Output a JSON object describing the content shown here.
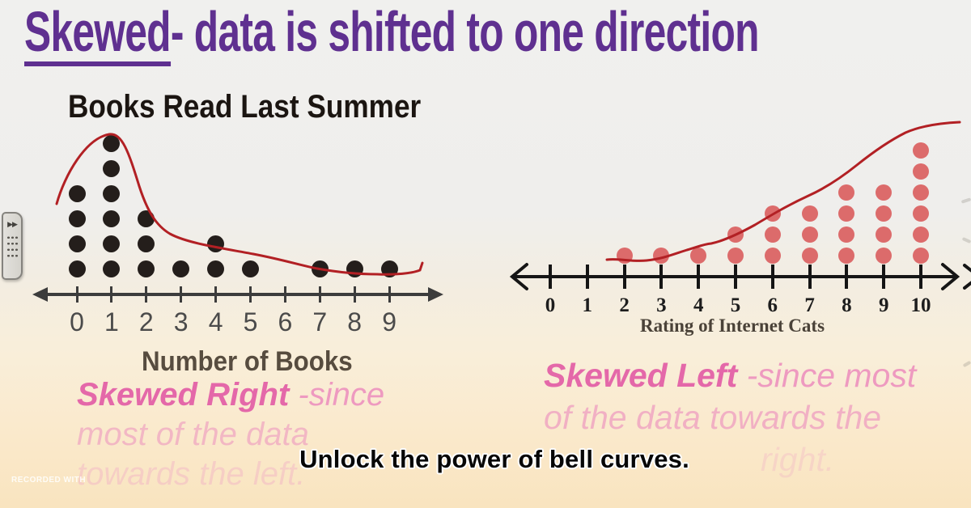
{
  "title": {
    "underlined": "Skewed",
    "rest": "- data is shifted to one direction"
  },
  "caption": {
    "text": "Unlock the power of bell curves."
  },
  "watermark": {
    "text": "RECORDED WITH"
  },
  "side_handle": {
    "arrows_icon": "▶▶"
  },
  "colors": {
    "title_purple": "#5f3090",
    "annotation_pink_strong": "#e468a9",
    "annotation_pink_light": "#ee9ac0",
    "curve_red": "#b22024",
    "left_dot_color": "#241e1b",
    "right_dot_color": "#dc6b6b"
  },
  "annotations": {
    "skewed_right": {
      "emphasis": "Skewed Right",
      "line1_rest": " -since",
      "line2": "most of the data",
      "line3": "towards the left."
    },
    "skewed_left": {
      "emphasis": "Skewed Left",
      "line1_rest": " -since most",
      "line2": "of the data towards the",
      "line3": "right."
    }
  },
  "chart_data": [
    {
      "type": "dot_plot",
      "title": "Books Read Last Summer",
      "xlabel": "Number of Books",
      "categories": [
        "0",
        "1",
        "2",
        "3",
        "4",
        "5",
        "6",
        "7",
        "8",
        "9"
      ],
      "counts": [
        4,
        6,
        3,
        1,
        2,
        1,
        0,
        1,
        1,
        1
      ],
      "skew": "right",
      "overlay_curve": "hand-drawn red curve peaking near x=1 with long tail to the right",
      "dot_color": "#241e1b",
      "axis": "horizontal number line with arrows on both ends"
    },
    {
      "type": "dot_plot",
      "title": "",
      "xlabel": "Rating of Internet Cats",
      "categories": [
        "0",
        "1",
        "2",
        "3",
        "4",
        "5",
        "6",
        "7",
        "8",
        "9",
        "10"
      ],
      "counts": [
        0,
        0,
        1,
        1,
        1,
        2,
        3,
        3,
        4,
        4,
        6
      ],
      "skew": "left",
      "overlay_curve": "hand-drawn red curve rising toward x=10",
      "dot_color": "#dc6b6b",
      "axis": "horizontal number line with open chevron arrows on both ends"
    }
  ]
}
